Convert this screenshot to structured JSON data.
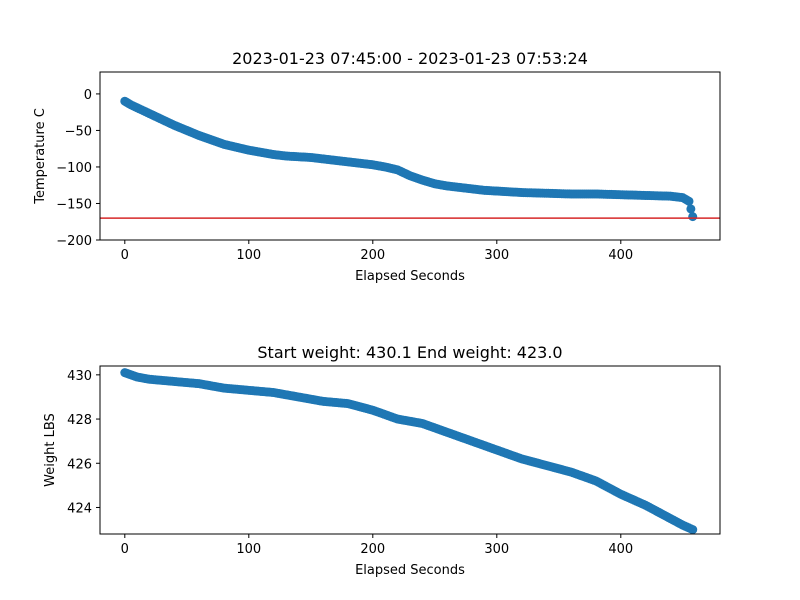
{
  "chart_data": [
    {
      "type": "scatter",
      "title": "2023-01-23 07:45:00 - 2023-01-23 07:53:24",
      "xlabel": "Elapsed Seconds",
      "ylabel": "Temperature C",
      "xlim": [
        -20,
        480
      ],
      "ylim": [
        -200,
        30
      ],
      "xticks": [
        0,
        100,
        200,
        300,
        400
      ],
      "yticks": [
        0,
        -50,
        -100,
        -150,
        -200
      ],
      "xtick_labels": [
        "0",
        "100",
        "200",
        "300",
        "400"
      ],
      "ytick_labels": [
        "0",
        "−50",
        "−100",
        "−150",
        "−200"
      ],
      "hline": {
        "y": -170,
        "color": "#d62728"
      },
      "series": [
        {
          "color": "#1f77b4",
          "x": [
            0,
            5,
            10,
            15,
            20,
            30,
            40,
            50,
            60,
            70,
            80,
            90,
            100,
            110,
            120,
            130,
            140,
            150,
            160,
            170,
            180,
            190,
            200,
            210,
            220,
            230,
            240,
            250,
            260,
            270,
            280,
            290,
            300,
            320,
            340,
            360,
            380,
            400,
            420,
            440,
            450,
            455,
            458
          ],
          "y": [
            -10,
            -15,
            -19,
            -23,
            -27,
            -35,
            -43,
            -50,
            -57,
            -63,
            -69,
            -73,
            -77,
            -80,
            -83,
            -85,
            -86,
            -87,
            -89,
            -91,
            -93,
            -95,
            -97,
            -100,
            -104,
            -112,
            -118,
            -123,
            -126,
            -128,
            -130,
            -132,
            -133,
            -135,
            -136,
            -137,
            -137,
            -138,
            -139,
            -140,
            -142,
            -147,
            -168
          ]
        }
      ]
    },
    {
      "type": "scatter",
      "title": "Start weight: 430.1 End weight: 423.0",
      "xlabel": "Elapsed Seconds",
      "ylabel": "Weight LBS",
      "xlim": [
        -20,
        480
      ],
      "ylim": [
        422.8,
        430.4
      ],
      "xticks": [
        0,
        100,
        200,
        300,
        400
      ],
      "yticks": [
        424,
        426,
        428,
        430
      ],
      "xtick_labels": [
        "0",
        "100",
        "200",
        "300",
        "400"
      ],
      "ytick_labels": [
        "424",
        "426",
        "428",
        "430"
      ],
      "series": [
        {
          "color": "#1f77b4",
          "x": [
            0,
            10,
            20,
            40,
            60,
            80,
            100,
            120,
            140,
            160,
            180,
            200,
            220,
            240,
            260,
            280,
            300,
            320,
            340,
            360,
            380,
            400,
            420,
            440,
            450,
            458
          ],
          "y": [
            430.1,
            429.9,
            429.8,
            429.7,
            429.6,
            429.4,
            429.3,
            429.2,
            429.0,
            428.8,
            428.7,
            428.4,
            428.0,
            427.8,
            427.4,
            427.0,
            426.6,
            426.2,
            425.9,
            425.6,
            425.2,
            424.6,
            424.1,
            423.5,
            423.2,
            423.0
          ]
        }
      ]
    }
  ]
}
